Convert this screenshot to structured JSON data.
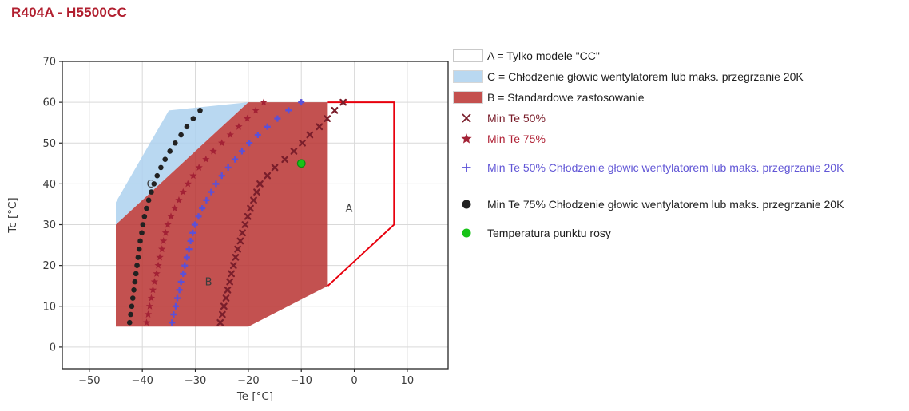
{
  "title": "R404A - H5500CC",
  "colors": {
    "title": "#b11f2f",
    "frame": "#262626",
    "grid": "#d9d9d9",
    "tick_text": "#3a3a3a",
    "region_label": "#3c3c3c",
    "red_fill": "#b93331",
    "blue_fill": "#add1ef",
    "a_outline": "#e8000d",
    "star": "#a32135",
    "xmark": "#7a1e2b",
    "plus": "#5a50d8",
    "black_dot": "#212121",
    "green_dot": "#17c317",
    "green_edge": "#0e8a12"
  },
  "chart_data": {
    "type": "scatter",
    "title": "R404A - H5500CC",
    "xlabel": "Te [°C]",
    "ylabel": "Tc [°C]",
    "x_ticks": [
      -50,
      -40,
      -30,
      -20,
      -10,
      0,
      10
    ],
    "y_ticks": [
      0,
      10,
      20,
      30,
      40,
      50,
      60,
      70
    ],
    "xlim": [
      -55.1,
      17.7
    ],
    "ylim": [
      -5.3,
      70
    ],
    "grid": true,
    "legend_position": "outside-right",
    "regions": [
      {
        "id": "C",
        "label": "C",
        "label_pos": [
          -38.5,
          40
        ],
        "fill": "#add1ef",
        "fill_opacity": 0.85,
        "closed": true,
        "points": [
          [
            -45,
            30
          ],
          [
            -45,
            35.5
          ],
          [
            -35,
            58
          ],
          [
            -20,
            60
          ]
        ]
      },
      {
        "id": "B",
        "label": "B",
        "label_pos": [
          -27.5,
          16
        ],
        "fill": "#b93331",
        "fill_opacity": 0.85,
        "closed": true,
        "points": [
          [
            -45,
            5
          ],
          [
            -45,
            30
          ],
          [
            -20,
            60
          ],
          [
            -5,
            60
          ],
          [
            -5,
            15
          ],
          [
            -20,
            5
          ]
        ]
      },
      {
        "id": "A",
        "label": "A",
        "label_pos": [
          -1,
          34
        ],
        "fill": "none",
        "stroke": "#e8000d",
        "stroke_width": 2,
        "closed": false,
        "points": [
          [
            -5,
            60
          ],
          [
            7.5,
            60
          ],
          [
            7.5,
            30
          ],
          [
            -5,
            15
          ]
        ]
      }
    ],
    "series": [
      {
        "id": "min_te_50",
        "name": "Min Te 50%",
        "marker": "x",
        "color": "#7a1e2b",
        "x": [
          -25.3,
          -24.9,
          -24.6,
          -24.2,
          -23.9,
          -23.5,
          -23.2,
          -22.8,
          -22.4,
          -22.0,
          -21.5,
          -21.1,
          -20.6,
          -20.1,
          -19.6,
          -19.0,
          -18.4,
          -17.8,
          -16.4,
          -15.0,
          -13.1,
          -11.4,
          -9.8,
          -8.4,
          -6.6,
          -5.1,
          -3.7,
          -2.1
        ],
        "y": [
          6,
          8,
          10,
          12,
          14,
          16,
          18,
          20,
          22,
          24,
          26,
          28,
          30,
          32,
          34,
          36,
          38,
          40,
          42,
          44,
          46,
          48,
          50,
          52,
          54,
          56,
          58,
          60
        ]
      },
      {
        "id": "min_te_75",
        "name": "Min Te 75%",
        "marker": "star",
        "color": "#a32135",
        "x": [
          -39.2,
          -38.9,
          -38.6,
          -38.3,
          -38.0,
          -37.7,
          -37.3,
          -37.0,
          -36.7,
          -36.3,
          -36.0,
          -35.6,
          -35.2,
          -34.6,
          -33.9,
          -33.1,
          -32.3,
          -31.4,
          -30.4,
          -29.3,
          -28.0,
          -26.6,
          -25.0,
          -23.4,
          -21.8,
          -20.2,
          -18.6,
          -17.1
        ],
        "y": [
          6,
          8,
          10,
          12,
          14,
          16,
          18,
          20,
          22,
          24,
          26,
          28,
          30,
          32,
          34,
          36,
          38,
          40,
          42,
          44,
          46,
          48,
          50,
          52,
          54,
          56,
          58,
          60
        ]
      },
      {
        "id": "min_te_50_cc",
        "name": "Min Te 50% Chłodzenie głowic wentylatorem lub maks. przegrzanie 20K",
        "marker": "plus",
        "color": "#5a50d8",
        "x": [
          -34.4,
          -34.1,
          -33.7,
          -33.4,
          -33.0,
          -32.7,
          -32.3,
          -32.0,
          -31.6,
          -31.2,
          -30.9,
          -30.5,
          -30.1,
          -29.4,
          -28.7,
          -27.9,
          -27.0,
          -26.1,
          -25.0,
          -23.8,
          -22.5,
          -21.2,
          -19.8,
          -18.2,
          -16.4,
          -14.5,
          -12.4,
          -10.0
        ],
        "y": [
          6,
          8,
          10,
          12,
          14,
          16,
          18,
          20,
          22,
          24,
          26,
          28,
          30,
          32,
          34,
          36,
          38,
          40,
          42,
          44,
          46,
          48,
          50,
          52,
          54,
          56,
          58,
          60
        ]
      },
      {
        "id": "min_te_75_cc",
        "name": "Min Te 75% Chłodzenie głowic wentylatorem lub maks. przegrzanie 20K",
        "marker": "dot",
        "color": "#212121",
        "x": [
          -42.4,
          -42.2,
          -42.0,
          -41.8,
          -41.6,
          -41.4,
          -41.2,
          -41.0,
          -40.8,
          -40.6,
          -40.4,
          -40.1,
          -39.9,
          -39.6,
          -39.2,
          -38.8,
          -38.3,
          -37.8,
          -37.2,
          -36.5,
          -35.7,
          -34.8,
          -33.8,
          -32.7,
          -31.6,
          -30.4,
          -29.1
        ],
        "y": [
          6,
          8,
          10,
          12,
          14,
          16,
          18,
          20,
          22,
          24,
          26,
          28,
          30,
          32,
          34,
          36,
          38,
          40,
          42,
          44,
          46,
          48,
          50,
          52,
          54,
          56,
          58
        ]
      },
      {
        "id": "dew_point",
        "name": "Temperatura punktu rosy",
        "marker": "dot-green",
        "color": "#17c317",
        "edge_color": "#0e8a12",
        "x": [
          -10
        ],
        "y": [
          45
        ]
      }
    ]
  },
  "legend": {
    "items": [
      {
        "id": "region-a",
        "icon": "swatch",
        "swatch_fill": "#ffffff",
        "swatch_border": "#c9c9c9",
        "text": "A = Tylko modele \"CC\"",
        "text_color": "#1f1f1f"
      },
      {
        "id": "region-c",
        "icon": "swatch",
        "swatch_fill": "#b9d8f1",
        "swatch_border": "#d6d6d6",
        "text": "C = Chłodzenie głowic wentylatorem lub maks. przegrzanie 20K",
        "text_color": "#1f1f1f"
      },
      {
        "id": "region-b",
        "icon": "swatch",
        "swatch_fill": "#c4504e",
        "swatch_border": "#d6d6d6",
        "text": "B = Standardowe zastosowanie",
        "text_color": "#1f1f1f"
      },
      {
        "id": "min-te-50",
        "icon": "x",
        "marker_color": "#7a1e2b",
        "text": "Min Te 50%",
        "text_color": "#7a1e2b"
      },
      {
        "id": "min-te-75",
        "icon": "star",
        "marker_color": "#a32135",
        "text": "Min Te 75%",
        "text_color": "#b02236"
      },
      {
        "id": "min-te-50-cc",
        "icon": "plus",
        "marker_color": "#5a50d8",
        "text": "Min Te 50% Chłodzenie głowic wentylatorem lub maks. przegrzanie 20K",
        "text_color": "#6156d6"
      },
      {
        "id": "min-te-75-cc",
        "icon": "dot",
        "marker_color": "#212121",
        "text": "Min Te 75% Chłodzenie głowic wentylatorem lub maks. przegrzanie 20K",
        "text_color": "#1f1f1f"
      },
      {
        "id": "dew-point",
        "icon": "dot",
        "marker_color": "#17c317",
        "text": "Temperatura punktu rosy",
        "text_color": "#1f1f1f"
      }
    ]
  }
}
